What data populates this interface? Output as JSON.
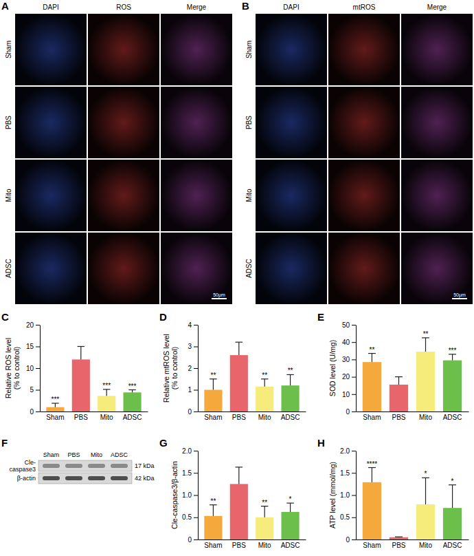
{
  "chart_data": [
    {
      "type": "bar",
      "title": "C",
      "y_label": [
        "Relative ROS level",
        "(% to control)"
      ],
      "categories": [
        "Sham",
        "PBS",
        "Mito",
        "ADSC"
      ],
      "values": [
        1.0,
        12.0,
        3.6,
        4.4
      ],
      "errors": [
        0.9,
        3.0,
        1.5,
        0.6
      ],
      "colors": [
        "#f5a93c",
        "#e8666b",
        "#f6ec7b",
        "#6dbf4c"
      ],
      "annotations": [
        "***",
        null,
        "***",
        "***"
      ],
      "ylim": [
        0,
        20
      ],
      "yticks": [
        0,
        5,
        10,
        15,
        20
      ]
    },
    {
      "type": "bar",
      "title": "D",
      "y_label": [
        "Relative mtROS level",
        "(% to control)"
      ],
      "categories": [
        "Sham",
        "PBS",
        "Mito",
        "ADSC"
      ],
      "values": [
        1.0,
        2.6,
        1.15,
        1.2
      ],
      "errors": [
        0.5,
        0.6,
        0.35,
        0.5
      ],
      "colors": [
        "#f5a93c",
        "#e8666b",
        "#f6ec7b",
        "#6dbf4c"
      ],
      "annotations": [
        "**",
        null,
        "**",
        "**"
      ],
      "ylim": [
        0,
        4
      ],
      "yticks": [
        0,
        1,
        2,
        3,
        4
      ]
    },
    {
      "type": "bar",
      "title": "E",
      "y_label": [
        "SOD level (U/mg)"
      ],
      "categories": [
        "Sham",
        "PBS",
        "Mito",
        "ADSC"
      ],
      "values": [
        28.5,
        15.5,
        34.5,
        29.5
      ],
      "errors": [
        5,
        4.5,
        8,
        3.5
      ],
      "colors": [
        "#f5a93c",
        "#e8666b",
        "#f6ec7b",
        "#6dbf4c"
      ],
      "annotations": [
        "**",
        null,
        "**",
        "***"
      ],
      "ylim": [
        0,
        50
      ],
      "yticks": [
        0,
        10,
        20,
        30,
        40,
        50
      ]
    },
    {
      "type": "bar",
      "title": "G",
      "y_label": [
        "Cle-caspase3/β-actin"
      ],
      "categories": [
        "Sham",
        "PBS",
        "Mito",
        "ADSC"
      ],
      "values": [
        0.53,
        1.25,
        0.5,
        0.62
      ],
      "errors": [
        0.25,
        0.38,
        0.25,
        0.2
      ],
      "colors": [
        "#f5a93c",
        "#e8666b",
        "#f6ec7b",
        "#6dbf4c"
      ],
      "annotations": [
        "**",
        null,
        "**",
        "*"
      ],
      "ylim": [
        0,
        2
      ],
      "yticks": [
        0,
        0.5,
        {
          "value": 1,
          "label": "1.0"
        },
        1.5,
        {
          "value": 2,
          "label": "2.0"
        }
      ]
    },
    {
      "type": "bar",
      "title": "H",
      "y_label": [
        "ATP level (mmol/mg)"
      ],
      "categories": [
        "Sham",
        "PBS",
        "Mito",
        "ADSC"
      ],
      "values": [
        1.29,
        0.05,
        0.79,
        0.71
      ],
      "errors": [
        0.33,
        0.01,
        0.6,
        0.52
      ],
      "colors": [
        "#f5a93c",
        "#e8666b",
        "#f6ec7b",
        "#6dbf4c"
      ],
      "annotations": [
        "****",
        null,
        "*",
        "*"
      ],
      "ylim": [
        0,
        2
      ],
      "yticks": [
        0,
        0.5,
        {
          "value": 1,
          "label": "1.0"
        },
        1.5,
        {
          "value": 2,
          "label": "2.0"
        }
      ]
    }
  ],
  "image_panels": [
    {
      "title": "A",
      "columns": [
        "DAPI",
        "ROS",
        "Merge"
      ],
      "rows": [
        "Sham",
        "PBS",
        "Mito",
        "ADSC"
      ],
      "scale_bar": "50μm"
    },
    {
      "title": "B",
      "columns": [
        "DAPI",
        "mtROS",
        "Merge"
      ],
      "rows": [
        "Sham",
        "PBS",
        "Mito",
        "ADSC"
      ],
      "scale_bar": "50μm"
    }
  ],
  "blot": {
    "title": "F",
    "lanes": [
      "Sham",
      "PBS",
      "Mito",
      "ADSC"
    ],
    "rows": [
      {
        "label": [
          "Cle-",
          "caspase3"
        ],
        "size": "17 kDa"
      },
      {
        "label": [
          "β-actin"
        ],
        "size": "42 kDa"
      }
    ]
  }
}
